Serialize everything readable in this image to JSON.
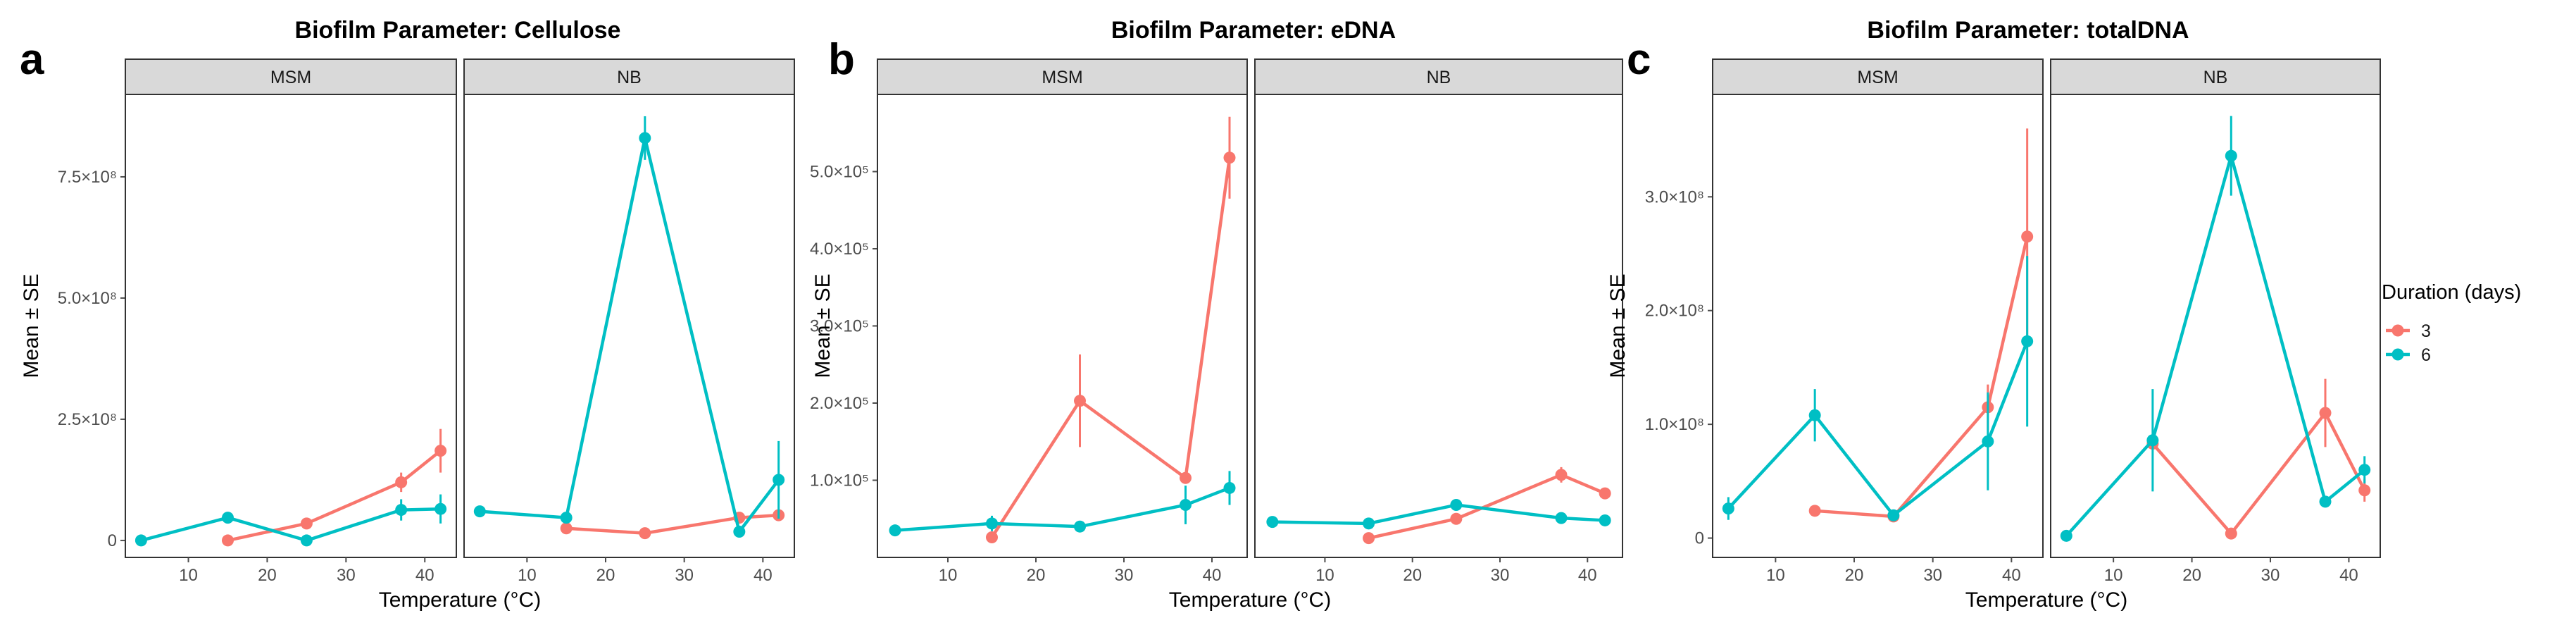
{
  "colors": {
    "d3": "#F8766D",
    "d6": "#00BFC4",
    "strip_bg": "#D9D9D9",
    "frame": "#333333",
    "tick": "#4d4d4d"
  },
  "legend": {
    "title": "Duration (days)",
    "entries": [
      {
        "label": "3",
        "color": "#F8766D"
      },
      {
        "label": "6",
        "color": "#00BFC4"
      }
    ]
  },
  "chart_data": [
    {
      "letter": "a",
      "type": "line",
      "title": "Biofilm Parameter: Cellulose",
      "xlabel": "Temperature (°C)",
      "ylabel": "Mean ± SE",
      "xlim": [
        2,
        44
      ],
      "ylim": [
        -35000000.0,
        920000000.0
      ],
      "xticks": [
        10,
        20,
        30,
        40
      ],
      "yticks": [
        {
          "value": 0,
          "label": "0"
        },
        {
          "value": 250000000.0,
          "label": "2.5×10⁸"
        },
        {
          "value": 500000000.0,
          "label": "5.0×10⁸"
        },
        {
          "value": 750000000.0,
          "label": "7.5×10⁸"
        }
      ],
      "facets": [
        {
          "strip": "MSM",
          "series": [
            {
              "name": "3",
              "points": [
                {
                  "x": 15,
                  "y": 0,
                  "se": 5000000.0
                },
                {
                  "x": 25,
                  "y": 35000000.0,
                  "se": 5000000.0
                },
                {
                  "x": 37,
                  "y": 120000000.0,
                  "se": 20000000.0
                },
                {
                  "x": 42,
                  "y": 185000000.0,
                  "se": 45000000.0
                }
              ]
            },
            {
              "name": "6",
              "points": [
                {
                  "x": 4,
                  "y": 0,
                  "se": 3000000.0
                },
                {
                  "x": 15,
                  "y": 47000000.0,
                  "se": 8000000.0
                },
                {
                  "x": 25,
                  "y": 0,
                  "se": 5000000.0
                },
                {
                  "x": 37,
                  "y": 63000000.0,
                  "se": 22000000.0
                },
                {
                  "x": 42,
                  "y": 65000000.0,
                  "se": 30000000.0
                }
              ]
            }
          ]
        },
        {
          "strip": "NB",
          "series": [
            {
              "name": "3",
              "points": [
                {
                  "x": 15,
                  "y": 25000000.0,
                  "se": 3000000.0
                },
                {
                  "x": 25,
                  "y": 15000000.0,
                  "se": 3000000.0
                },
                {
                  "x": 37,
                  "y": 47000000.0,
                  "se": 5000000.0
                },
                {
                  "x": 42,
                  "y": 52000000.0,
                  "se": 5000000.0
                }
              ]
            },
            {
              "name": "6",
              "points": [
                {
                  "x": 4,
                  "y": 60000000.0,
                  "se": 4000000.0
                },
                {
                  "x": 15,
                  "y": 47000000.0,
                  "se": 4000000.0
                },
                {
                  "x": 25,
                  "y": 830000000.0,
                  "se": 45000000.0
                },
                {
                  "x": 37,
                  "y": 18000000.0,
                  "se": 10000000.0
                },
                {
                  "x": 42,
                  "y": 125000000.0,
                  "se": 80000000.0
                }
              ]
            }
          ]
        }
      ]
    },
    {
      "letter": "b",
      "type": "line",
      "title": "Biofilm Parameter: eDNA",
      "xlabel": "Temperature (°C)",
      "ylabel": "Mean ± SE",
      "xlim": [
        2,
        44
      ],
      "ylim": [
        0,
        600000.0
      ],
      "xticks": [
        10,
        20,
        30,
        40
      ],
      "yticks": [
        {
          "value": 100000.0,
          "label": "1.0×10⁵"
        },
        {
          "value": 200000.0,
          "label": "2.0×10⁵"
        },
        {
          "value": 300000.0,
          "label": "3.0×10⁵"
        },
        {
          "value": 400000.0,
          "label": "4.0×10⁵"
        },
        {
          "value": 500000.0,
          "label": "5.0×10⁵"
        }
      ],
      "facets": [
        {
          "strip": "MSM",
          "series": [
            {
              "name": "3",
              "points": [
                {
                  "x": 15,
                  "y": 26000.0,
                  "se": 3000.0
                },
                {
                  "x": 25,
                  "y": 203000.0,
                  "se": 60000.0
                },
                {
                  "x": 37,
                  "y": 103000.0,
                  "se": 5000.0
                },
                {
                  "x": 42,
                  "y": 518000.0,
                  "se": 53000.0
                }
              ]
            },
            {
              "name": "6",
              "points": [
                {
                  "x": 4,
                  "y": 35000.0,
                  "se": 3000.0
                },
                {
                  "x": 15,
                  "y": 44000.0,
                  "se": 10000.0
                },
                {
                  "x": 25,
                  "y": 40000.0,
                  "se": 3000.0
                },
                {
                  "x": 37,
                  "y": 68000.0,
                  "se": 25000.0
                },
                {
                  "x": 42,
                  "y": 90000.0,
                  "se": 22000.0
                }
              ]
            }
          ]
        },
        {
          "strip": "NB",
          "series": [
            {
              "name": "3",
              "points": [
                {
                  "x": 15,
                  "y": 25000.0,
                  "se": 3000.0
                },
                {
                  "x": 25,
                  "y": 50000.0,
                  "se": 4000.0
                },
                {
                  "x": 37,
                  "y": 107000.0,
                  "se": 10000.0
                },
                {
                  "x": 42,
                  "y": 83000.0,
                  "se": 4000.0
                }
              ]
            },
            {
              "name": "6",
              "points": [
                {
                  "x": 4,
                  "y": 46000.0,
                  "se": 3000.0
                },
                {
                  "x": 15,
                  "y": 44000.0,
                  "se": 3000.0
                },
                {
                  "x": 25,
                  "y": 68000.0,
                  "se": 4000.0
                },
                {
                  "x": 37,
                  "y": 51000.0,
                  "se": 3000.0
                },
                {
                  "x": 42,
                  "y": 48000.0,
                  "se": 3000.0
                }
              ]
            }
          ]
        }
      ]
    },
    {
      "letter": "c",
      "type": "line",
      "title": "Biofilm Parameter: totalDNA",
      "xlabel": "Temperature (°C)",
      "ylabel": "Mean ± SE",
      "xlim": [
        2,
        44
      ],
      "ylim": [
        -17000000.0,
        390000000.0
      ],
      "xticks": [
        10,
        20,
        30,
        40
      ],
      "yticks": [
        {
          "value": 0,
          "label": "0"
        },
        {
          "value": 100000000.0,
          "label": "1.0×10⁸"
        },
        {
          "value": 200000000.0,
          "label": "2.0×10⁸"
        },
        {
          "value": 300000000.0,
          "label": "3.0×10⁸"
        }
      ],
      "facets": [
        {
          "strip": "MSM",
          "series": [
            {
              "name": "3",
              "points": [
                {
                  "x": 15,
                  "y": 24000000.0,
                  "se": 3000000.0
                },
                {
                  "x": 25,
                  "y": 19000000.0,
                  "se": 3000000.0
                },
                {
                  "x": 37,
                  "y": 115000000.0,
                  "se": 20000000.0
                },
                {
                  "x": 42,
                  "y": 265000000.0,
                  "se": 95000000.0
                }
              ]
            },
            {
              "name": "6",
              "points": [
                {
                  "x": 4,
                  "y": 26000000.0,
                  "se": 10000000.0
                },
                {
                  "x": 15,
                  "y": 108000000.0,
                  "se": 23000000.0
                },
                {
                  "x": 25,
                  "y": 20000000.0,
                  "se": 5000000.0
                },
                {
                  "x": 37,
                  "y": 85000000.0,
                  "se": 43000000.0
                },
                {
                  "x": 42,
                  "y": 173000000.0,
                  "se": 75000000.0
                }
              ]
            }
          ]
        },
        {
          "strip": "NB",
          "series": [
            {
              "name": "3",
              "points": [
                {
                  "x": 15,
                  "y": 83000000.0,
                  "se": 5000000.0
                },
                {
                  "x": 25,
                  "y": 4000000.0,
                  "se": 2000000.0
                },
                {
                  "x": 37,
                  "y": 110000000.0,
                  "se": 30000000.0
                },
                {
                  "x": 42,
                  "y": 42000000.0,
                  "se": 10000000.0
                }
              ]
            },
            {
              "name": "6",
              "points": [
                {
                  "x": 4,
                  "y": 2000000.0,
                  "se": 2000000.0
                },
                {
                  "x": 15,
                  "y": 86000000.0,
                  "se": 45000000.0
                },
                {
                  "x": 25,
                  "y": 336000000.0,
                  "se": 35000000.0
                },
                {
                  "x": 37,
                  "y": 32000000.0,
                  "se": 4000000.0
                },
                {
                  "x": 42,
                  "y": 60000000.0,
                  "se": 12000000.0
                }
              ]
            }
          ]
        }
      ]
    }
  ]
}
